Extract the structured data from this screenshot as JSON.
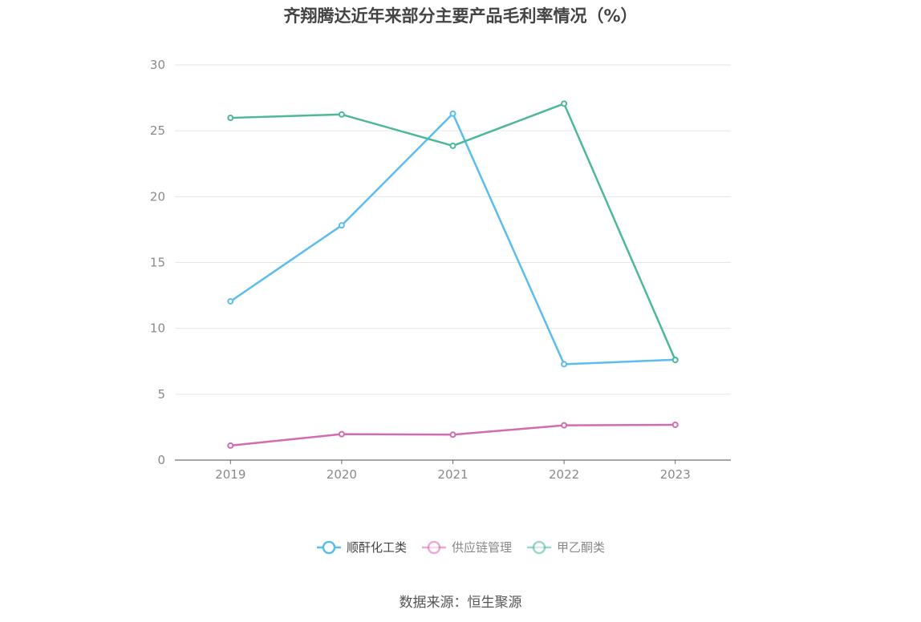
{
  "title": "齐翔腾达近年来部分主要产品毛利率情况（%）",
  "source": "数据来源：恒生聚源",
  "chart_data": {
    "type": "line",
    "title": "齐翔腾达近年来部分主要产品毛利率情况（%）",
    "categories": [
      "2019",
      "2020",
      "2021",
      "2022",
      "2023"
    ],
    "ylim": [
      0,
      30
    ],
    "yticks": [
      0,
      5,
      10,
      15,
      20,
      25,
      30
    ],
    "grid": true,
    "legend_position": "bottom",
    "series": [
      {
        "name": "顺酐化工类",
        "color": "#5bbdee",
        "values": [
          12.05,
          17.82,
          26.3,
          7.28,
          7.62
        ]
      },
      {
        "name": "供应链管理",
        "color": "#d46bb0",
        "values": [
          1.1,
          1.97,
          1.93,
          2.64,
          2.68
        ]
      },
      {
        "name": "甲乙酮类",
        "color": "#4db79a",
        "values": [
          25.98,
          26.24,
          23.86,
          27.06,
          7.6
        ]
      }
    ]
  }
}
